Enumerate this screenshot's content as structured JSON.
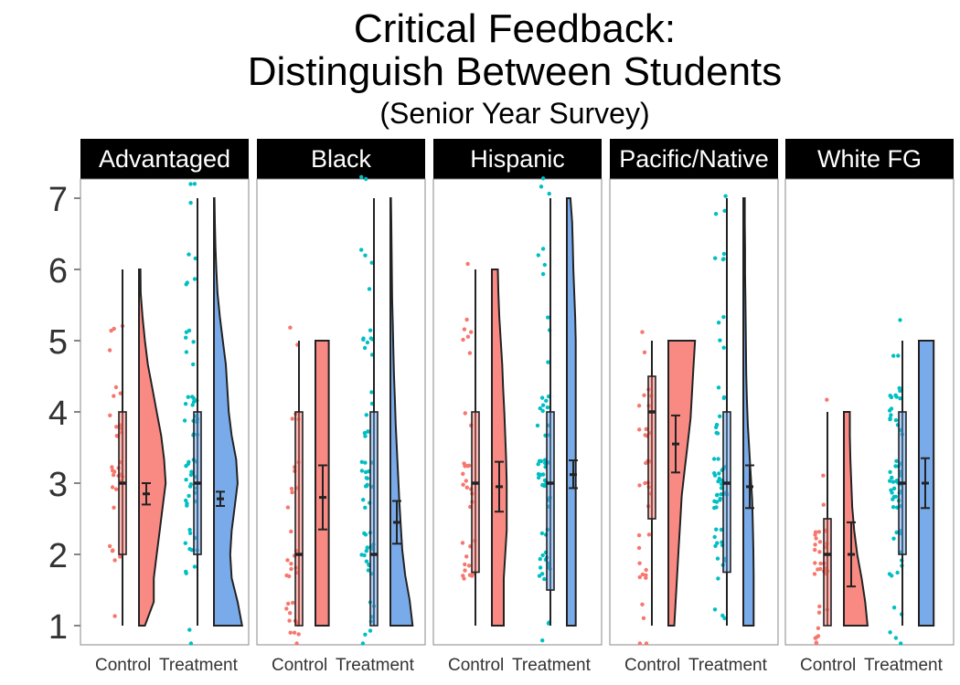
{
  "chart_data": {
    "type": "raincloud",
    "title_lines": [
      "Critical Feedback:",
      "Distinguish Between Students"
    ],
    "subtitle": "(Senior Year Survey)",
    "xlabel": "",
    "ylabel": "",
    "ylim": [
      1,
      7
    ],
    "yticks": [
      1,
      2,
      3,
      4,
      5,
      6,
      7
    ],
    "grid": false,
    "groups": [
      "Control",
      "Treatment"
    ],
    "colors": {
      "Control": "#F8766D",
      "Treatment": "#00BFC4",
      "Treatment_cloud": "#619CE6",
      "strip_bg": "#000000"
    },
    "panels": [
      {
        "name": "Advantaged",
        "control": {
          "box": {
            "min": 1,
            "q1": 2,
            "median": 3,
            "q3": 4,
            "max": 6
          },
          "mean": 2.85,
          "ci": [
            2.7,
            3.0
          ],
          "density": [
            0.2,
            0.5,
            0.5,
            0.6,
            0.7,
            0.8,
            0.9,
            0.85,
            0.75,
            0.6,
            0.45,
            0.3,
            0.2,
            0.12,
            0.06,
            0.05
          ]
        },
        "treatment": {
          "box": {
            "min": 1,
            "q1": 2,
            "median": 3,
            "q3": 4,
            "max": 7
          },
          "mean": 2.78,
          "ci": [
            2.68,
            2.88
          ],
          "density": [
            0.95,
            0.8,
            0.6,
            0.55,
            0.6,
            0.7,
            0.8,
            0.75,
            0.6,
            0.5,
            0.45,
            0.4,
            0.3,
            0.2,
            0.12,
            0.08,
            0.05,
            0.03,
            0.02
          ]
        }
      },
      {
        "name": "Black",
        "control": {
          "box": {
            "min": 1,
            "q1": 1,
            "median": 2,
            "q3": 4,
            "max": 5
          },
          "mean": 2.8,
          "ci": [
            2.35,
            3.25
          ],
          "density": [
            0.45,
            0.45,
            0.45,
            0.45,
            0.45,
            0.45,
            0.45,
            0.45,
            0.45,
            0.45,
            0.45,
            0.45,
            0.45
          ]
        },
        "treatment": {
          "box": {
            "min": 1,
            "q1": 1,
            "median": 2,
            "q3": 4,
            "max": 7
          },
          "mean": 2.45,
          "ci": [
            2.15,
            2.75
          ],
          "density": [
            0.75,
            0.65,
            0.5,
            0.4,
            0.35,
            0.3,
            0.26,
            0.22,
            0.18,
            0.15,
            0.12,
            0.1,
            0.08,
            0.06,
            0.05,
            0.04,
            0.03,
            0.02
          ]
        }
      },
      {
        "name": "Hispanic",
        "control": {
          "box": {
            "min": 1,
            "q1": 1.75,
            "median": 3,
            "q3": 4,
            "max": 6
          },
          "mean": 2.95,
          "ci": [
            2.6,
            3.3
          ],
          "density": [
            0.4,
            0.4,
            0.4,
            0.45,
            0.5,
            0.5,
            0.5,
            0.48,
            0.45,
            0.42,
            0.38,
            0.35,
            0.3,
            0.25,
            0.22,
            0.2
          ]
        },
        "treatment": {
          "box": {
            "min": 1,
            "q1": 1.5,
            "median": 3,
            "q3": 4,
            "max": 7
          },
          "mean": 3.12,
          "ci": [
            2.93,
            3.32
          ],
          "density": [
            0.3,
            0.3,
            0.3,
            0.3,
            0.3,
            0.3,
            0.3,
            0.3,
            0.3,
            0.3,
            0.3,
            0.3,
            0.3,
            0.28,
            0.25,
            0.22,
            0.2,
            0.18,
            0.12
          ]
        }
      },
      {
        "name": "Pacific/Native",
        "control": {
          "box": {
            "min": 1,
            "q1": 2.5,
            "median": 4,
            "q3": 4.5,
            "max": 5
          },
          "mean": 3.55,
          "ci": [
            3.15,
            3.95
          ],
          "density": [
            0.2,
            0.25,
            0.3,
            0.35,
            0.4,
            0.45,
            0.55,
            0.65,
            0.75,
            0.8,
            0.85,
            0.9
          ]
        },
        "treatment": {
          "box": {
            "min": 1,
            "q1": 1.75,
            "median": 3,
            "q3": 4,
            "max": 7
          },
          "mean": 2.95,
          "ci": [
            2.65,
            3.25
          ],
          "density": [
            0.35,
            0.35,
            0.35,
            0.34,
            0.32,
            0.3,
            0.25,
            0.2,
            0.15,
            0.12,
            0.1,
            0.09,
            0.08,
            0.07,
            0.06,
            0.06,
            0.05,
            0.05
          ]
        }
      },
      {
        "name": "White FG",
        "control": {
          "box": {
            "min": 1,
            "q1": 1,
            "median": 2,
            "q3": 2.5,
            "max": 4
          },
          "mean": 2.0,
          "ci": [
            1.55,
            2.45
          ],
          "density": [
            0.8,
            0.72,
            0.6,
            0.45,
            0.35,
            0.28,
            0.25,
            0.22,
            0.2,
            0.2
          ]
        },
        "treatment": {
          "box": {
            "min": 1,
            "q1": 2,
            "median": 3,
            "q3": 4,
            "max": 5
          },
          "mean": 3.0,
          "ci": [
            2.65,
            3.35
          ],
          "density": [
            0.5,
            0.5,
            0.5,
            0.5,
            0.5,
            0.5,
            0.5,
            0.5,
            0.5,
            0.5,
            0.5,
            0.5,
            0.5
          ]
        }
      }
    ]
  }
}
